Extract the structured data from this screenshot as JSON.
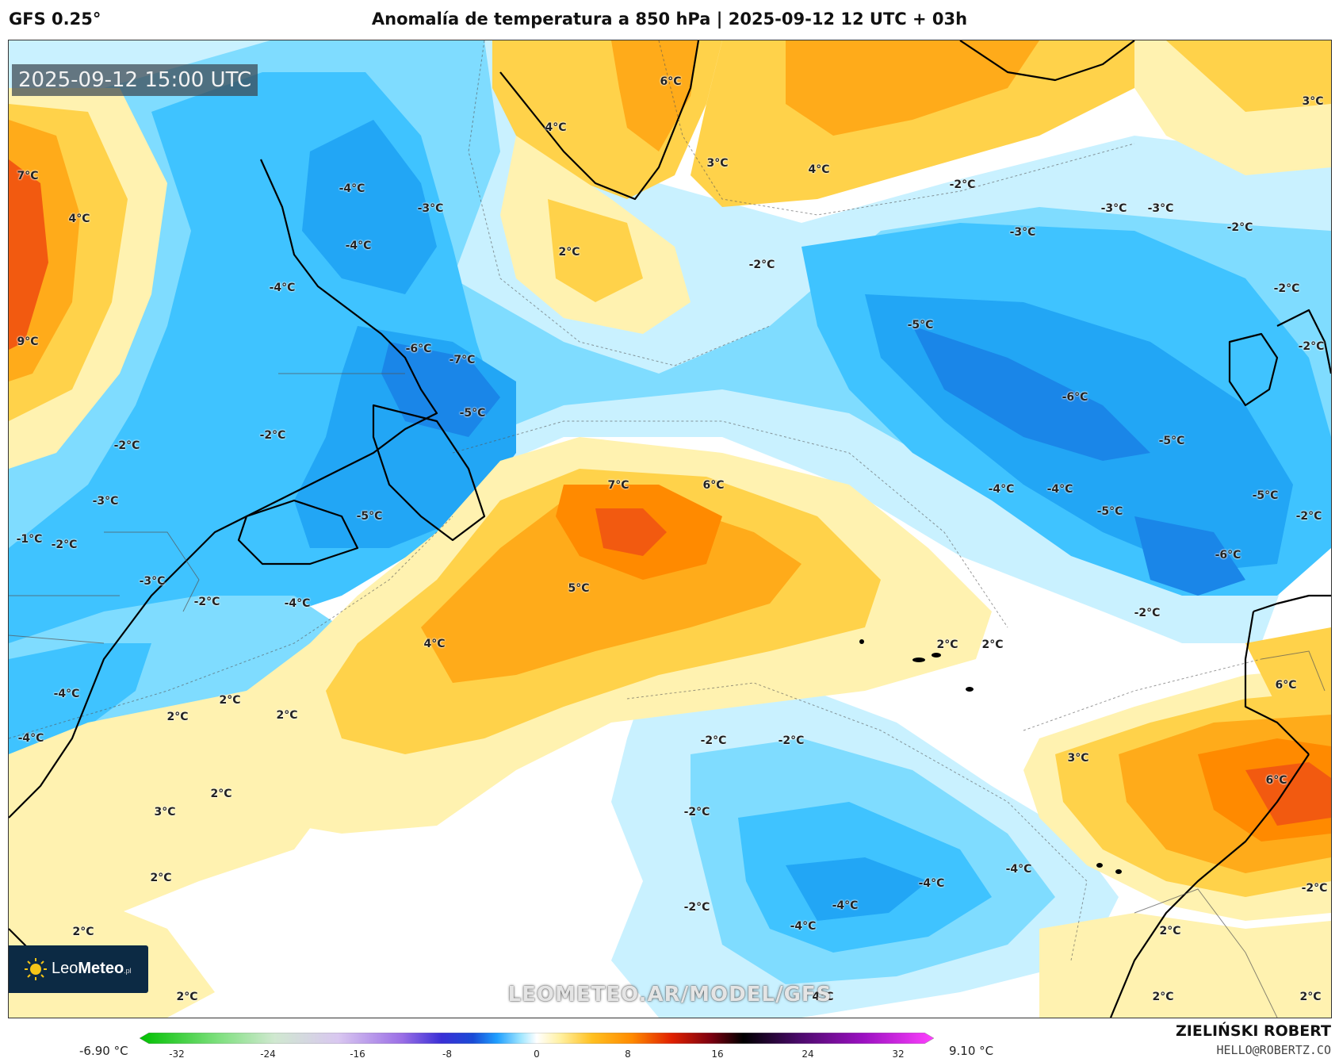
{
  "header": {
    "model": "GFS 0.25°",
    "title": "Anomalía de temperatura a 850 hPa | 2025-09-12 12 UTC + 03h"
  },
  "map": {
    "valid_time": "2025-09-12 15:00 UTC",
    "watermark": "LEOMETEO.AR/MODEL/GFS",
    "labels": [
      {
        "text": "7°C"
      },
      {
        "text": "4°C"
      },
      {
        "text": "9°C"
      },
      {
        "text": "-4°C"
      },
      {
        "text": "-3°C"
      },
      {
        "text": "-4°C"
      },
      {
        "text": "-4°C"
      },
      {
        "text": "-6°C"
      },
      {
        "text": "-7°C"
      },
      {
        "text": "-5°C"
      },
      {
        "text": "-5°C"
      },
      {
        "text": "-2°C"
      },
      {
        "text": "-2°C"
      },
      {
        "text": "-3°C"
      },
      {
        "text": "-1°C"
      },
      {
        "text": "-2°C"
      },
      {
        "text": "-3°C"
      },
      {
        "text": "-2°C"
      },
      {
        "text": "-4°C"
      },
      {
        "text": "-4°C"
      },
      {
        "text": "-4°C"
      },
      {
        "text": "2°C"
      },
      {
        "text": "2°C"
      },
      {
        "text": "2°C"
      },
      {
        "text": "2°C"
      },
      {
        "text": "3°C"
      },
      {
        "text": "2°C"
      },
      {
        "text": "2°C"
      },
      {
        "text": "2°C"
      },
      {
        "text": "6°C"
      },
      {
        "text": "4°C"
      },
      {
        "text": "2°C"
      },
      {
        "text": "3°C"
      },
      {
        "text": "4°C"
      },
      {
        "text": "3°C"
      },
      {
        "text": "-2°C"
      },
      {
        "text": "-2°C"
      },
      {
        "text": "-3°C"
      },
      {
        "text": "-3°C"
      },
      {
        "text": "-3°C"
      },
      {
        "text": "-2°C"
      },
      {
        "text": "-2°C"
      },
      {
        "text": "-2°C"
      },
      {
        "text": "-5°C"
      },
      {
        "text": "-6°C"
      },
      {
        "text": "-5°C"
      },
      {
        "text": "-4°C"
      },
      {
        "text": "-4°C"
      },
      {
        "text": "-5°C"
      },
      {
        "text": "-5°C"
      },
      {
        "text": "-6°C"
      },
      {
        "text": "-2°C"
      },
      {
        "text": "7°C"
      },
      {
        "text": "6°C"
      },
      {
        "text": "5°C"
      },
      {
        "text": "4°C"
      },
      {
        "text": "2°C"
      },
      {
        "text": "2°C"
      },
      {
        "text": "-2°C"
      },
      {
        "text": "-2°C"
      },
      {
        "text": "-2°C"
      },
      {
        "text": "-2°C"
      },
      {
        "text": "-4°C"
      },
      {
        "text": "-4°C"
      },
      {
        "text": "-4°C"
      },
      {
        "text": "-4°C"
      },
      {
        "text": "3°C"
      },
      {
        "text": "6°C"
      },
      {
        "text": "6°C"
      },
      {
        "text": "-2°C"
      },
      {
        "text": "2°C"
      },
      {
        "text": "2°C"
      },
      {
        "text": "2°C"
      },
      {
        "text": "-2°C"
      },
      {
        "text": "4°C"
      }
    ]
  },
  "logo": {
    "brand_light": "Leo",
    "brand_bold": "Meteo",
    "suffix": ".pl"
  },
  "colorbar": {
    "min_label": "-6.90 °C",
    "max_label": "9.10 °C",
    "ticks": [
      "-32",
      "-24",
      "-16",
      "-8",
      "0",
      "8",
      "16",
      "24",
      "32"
    ],
    "colors": [
      "#00c000",
      "#7fe07f",
      "#c8e6c8",
      "#d9c7f0",
      "#9b6fe6",
      "#5a2fd6",
      "#1a2bd6",
      "#1f7fff",
      "#3fbfff",
      "#bfefff",
      "#ffffff",
      "#fff0a0",
      "#ffc020",
      "#ff8a00",
      "#e02000",
      "#7a0010",
      "#000000",
      "#4a0a6a",
      "#9a10c0",
      "#ff40ff"
    ]
  },
  "footer": {
    "author": "ZIELIŃSKI ROBERT",
    "email": "HELLO@ROBERTZ.CO"
  },
  "palette": {
    "white": "#ffffff",
    "pale_yellow": "#fff2b0",
    "yellow": "#ffd24a",
    "orange": "#ffab1a",
    "dark_orange": "#ff8a00",
    "red_orange": "#f25a10",
    "pale_blue": "#c9f1ff",
    "light_blue": "#7fdcff",
    "blue": "#3fc3ff",
    "mid_blue": "#22a6f5",
    "deep_blue": "#1a86e8"
  }
}
